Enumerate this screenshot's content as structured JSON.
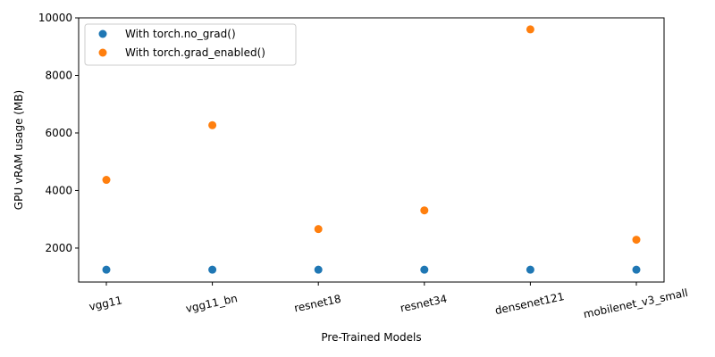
{
  "chart_data": {
    "type": "scatter",
    "categories": [
      "vgg11",
      "vgg11_bn",
      "resnet18",
      "resnet34",
      "densenet121",
      "mobilenet_v3_small"
    ],
    "series": [
      {
        "name": "With torch.no_grad()",
        "color": "#1f77b4",
        "values": [
          1250,
          1250,
          1250,
          1250,
          1250,
          1250
        ]
      },
      {
        "name": "With torch.grad_enabled()",
        "color": "#ff7f0e",
        "values": [
          4370,
          6270,
          2660,
          3310,
          9600,
          2290
        ]
      }
    ],
    "xlabel": "Pre-Trained Models",
    "ylabel": "GPU vRAM usage (MB)",
    "ylim": [
      820,
      10000
    ],
    "yticks": [
      2000,
      4000,
      6000,
      8000,
      10000
    ],
    "xtick_rotation_deg": -12,
    "grid": false,
    "legend_position": "top-left"
  }
}
